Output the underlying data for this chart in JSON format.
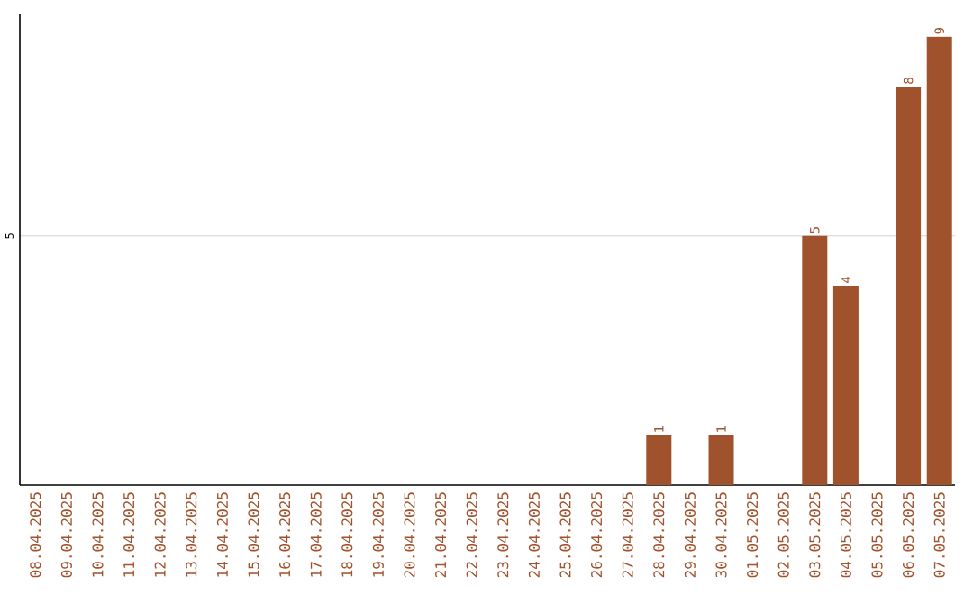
{
  "chart_data": {
    "type": "bar",
    "categories": [
      "08.04.2025",
      "09.04.2025",
      "10.04.2025",
      "11.04.2025",
      "12.04.2025",
      "13.04.2025",
      "14.04.2025",
      "15.04.2025",
      "16.04.2025",
      "17.04.2025",
      "18.04.2025",
      "19.04.2025",
      "20.04.2025",
      "21.04.2025",
      "22.04.2025",
      "23.04.2025",
      "24.04.2025",
      "25.04.2025",
      "26.04.2025",
      "27.04.2025",
      "28.04.2025",
      "29.04.2025",
      "30.04.2025",
      "01.05.2025",
      "02.05.2025",
      "03.05.2025",
      "04.05.2025",
      "05.05.2025",
      "06.05.2025",
      "07.05.2025"
    ],
    "values": [
      null,
      null,
      null,
      null,
      null,
      null,
      null,
      null,
      null,
      null,
      null,
      null,
      null,
      null,
      null,
      null,
      null,
      null,
      null,
      null,
      1,
      null,
      1,
      null,
      null,
      5,
      4,
      null,
      8,
      9
    ],
    "data_labels": true,
    "color": "#a0522d",
    "ylim": [
      0,
      9.45
    ],
    "yticks": [
      5
    ],
    "grid": "y"
  }
}
